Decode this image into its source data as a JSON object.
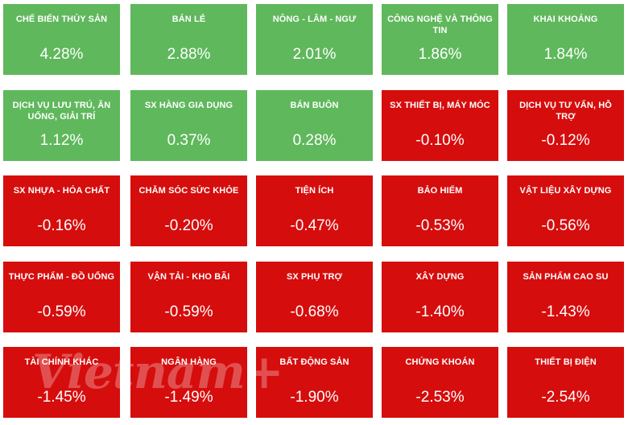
{
  "colors": {
    "positive": "#5fb85c",
    "negative": "#d60d0d",
    "text": "#ffffff"
  },
  "watermark": "Vietnam+",
  "chart_data": {
    "type": "heatmap",
    "title": "",
    "categories": [
      "CHẾ BIẾN THỦY SẢN",
      "BÁN LẺ",
      "NÔNG - LÂM - NGƯ",
      "CÔNG NGHỆ VÀ THÔNG TIN",
      "KHAI KHOÁNG",
      "DỊCH VỤ LƯU TRÚ, ĂN UỐNG, GIẢI TRÍ",
      "SX HÀNG GIA DỤNG",
      "BÁN BUÔN",
      "SX THIẾT BỊ, MÁY MÓC",
      "DỊCH VỤ TƯ VẤN, HỖ TRỢ",
      "SX NHỰA - HÓA CHẤT",
      "CHĂM SÓC SỨC KHỎE",
      "TIỆN ÍCH",
      "BẢO HIỂM",
      "VẬT LIỆU XÂY DỰNG",
      "THỰC PHẨM - ĐỒ UỐNG",
      "VẬN TẢI - KHO BÃI",
      "SX PHỤ TRỢ",
      "XÂY DỰNG",
      "SẢN PHẨM CAO SU",
      "TÀI CHÍNH KHÁC",
      "NGÂN HÀNG",
      "BẤT ĐỘNG SẢN",
      "CHỨNG KHOÁN",
      "THIẾT BỊ ĐIỆN"
    ],
    "values": [
      4.28,
      2.88,
      2.01,
      1.86,
      1.84,
      1.12,
      0.37,
      0.28,
      -0.1,
      -0.12,
      -0.16,
      -0.2,
      -0.47,
      -0.53,
      -0.56,
      -0.59,
      -0.59,
      -0.68,
      -1.4,
      -1.43,
      -1.45,
      -1.49,
      -1.9,
      -2.53,
      -2.54
    ],
    "labels": [
      "4.28%",
      "2.88%",
      "2.01%",
      "1.86%",
      "1.84%",
      "1.12%",
      "0.37%",
      "0.28%",
      "-0.10%",
      "-0.12%",
      "-0.16%",
      "-0.20%",
      "-0.47%",
      "-0.53%",
      "-0.56%",
      "-0.59%",
      "-0.59%",
      "-0.68%",
      "-1.40%",
      "-1.43%",
      "-1.45%",
      "-1.49%",
      "-1.90%",
      "-2.53%",
      "-2.54%"
    ],
    "unit": "%",
    "rows": 5,
    "columns": 5
  }
}
